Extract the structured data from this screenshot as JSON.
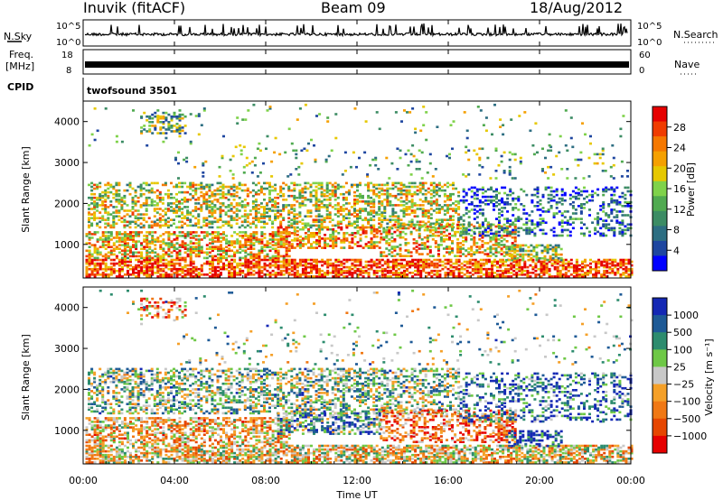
{
  "header": {
    "station": "Inuvik (fitACF)",
    "beam": "Beam 09",
    "date": "18/Aug/2012"
  },
  "nsky_panel": {
    "left_label": "N.Sky",
    "right_label": "N.Search",
    "ticks_left": [
      "10^5",
      "10^0"
    ],
    "ticks_right": [
      "10^5",
      "10^0"
    ]
  },
  "freq_panel": {
    "label_line1": "Freq.",
    "label_line2": "[MHz]",
    "right_label": "Nave",
    "ticks_left": [
      "18",
      "8"
    ],
    "ticks_right": [
      "60",
      "0"
    ]
  },
  "cpid_panel": {
    "label": "CPID",
    "program": "twofsound 3501"
  },
  "time_axis": {
    "label": "Time UT",
    "ticks": [
      "00:00",
      "04:00",
      "08:00",
      "12:00",
      "16:00",
      "20:00",
      "00:00"
    ]
  },
  "chart_data": [
    {
      "type": "heatmap",
      "name": "power",
      "ylabel": "Slant Range [km]",
      "yticks": [
        "4000",
        "3000",
        "2000",
        "1000"
      ],
      "ylim": [
        180,
        4500
      ],
      "xlim_hours": [
        0,
        24
      ],
      "colorbar": {
        "title": "Power [dB]",
        "ticks": [
          "28",
          "24",
          "20",
          "16",
          "12",
          "8",
          "4"
        ],
        "colors": [
          "#e60000",
          "#f03c00",
          "#f57800",
          "#f5a000",
          "#e6c800",
          "#7fd24a",
          "#50aa50",
          "#3c8c64",
          "#2d6e82",
          "#1e46a0",
          "#0000ff"
        ]
      }
    },
    {
      "type": "heatmap",
      "name": "velocity",
      "ylabel": "Slant Range [km]",
      "yticks": [
        "4000",
        "3000",
        "2000",
        "1000"
      ],
      "ylim": [
        180,
        4500
      ],
      "xlim_hours": [
        0,
        24
      ],
      "colorbar": {
        "title": "Velocity [m s⁻¹]",
        "ticks": [
          "1000",
          "500",
          "100",
          "25",
          "−25",
          "−100",
          "−500",
          "−1000"
        ],
        "colors": [
          "#1428b4",
          "#1e5a96",
          "#2d8c6e",
          "#6ec846",
          "#c8c8c8",
          "#f5a028",
          "#f07814",
          "#e64600",
          "#e60000"
        ]
      }
    }
  ]
}
